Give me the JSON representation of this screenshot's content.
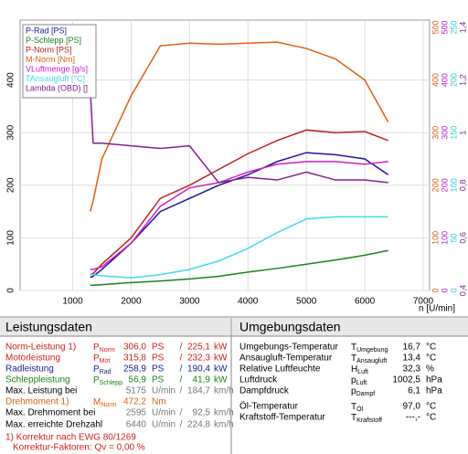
{
  "chart_data": {
    "type": "line",
    "x": [
      1300,
      1350,
      1500,
      2000,
      2500,
      3000,
      3500,
      4000,
      4500,
      5000,
      5500,
      6000,
      6400
    ],
    "xlim": [
      100,
      7000
    ],
    "xticks": [
      1000,
      2000,
      3000,
      4000,
      5000,
      6000,
      7000
    ],
    "x_label": "n [U/min]",
    "ylim": [
      0,
      500
    ],
    "yticks": [
      0,
      100,
      200,
      300,
      400
    ],
    "grid": true,
    "y2lim": [
      0,
      500
    ],
    "y2ticks": [
      0,
      100,
      200,
      300,
      400,
      500
    ],
    "y2color": "#e06010",
    "y3lim": [
      0,
      500
    ],
    "y3ticks": [
      0,
      100,
      200,
      300,
      400,
      500
    ],
    "y3color": "#c020c0",
    "y4lim": [
      0,
      250
    ],
    "y4ticks": [
      0,
      50,
      100,
      150,
      200,
      250
    ],
    "y4color": "#30d0e0",
    "y5lim": [
      0.4,
      1.4
    ],
    "y5ticks": [
      {
        "value": 0.4,
        "label": "0,4"
      },
      {
        "value": 0.6,
        "label": "0,6"
      },
      {
        "value": 0.8,
        "label": "0,8"
      },
      1,
      {
        "value": 1.2,
        "label": "1,2"
      },
      {
        "value": 1.4,
        "label": "1,4"
      }
    ],
    "y5color": "#802090",
    "series": [
      {
        "name": "P-Rad [PS]",
        "color": "#1a1aa0",
        "values": [
          25,
          27,
          40,
          90,
          150,
          175,
          200,
          220,
          245,
          262,
          258,
          250,
          220
        ]
      },
      {
        "name": "P-Schlepp [PS]",
        "color": "#208020",
        "values": [
          10,
          10,
          11,
          15,
          18,
          22,
          27,
          35,
          42,
          50,
          58,
          67,
          76
        ]
      },
      {
        "name": "P-Norm [PS]",
        "color": "#c02020",
        "values": [
          30,
          32,
          50,
          100,
          175,
          200,
          230,
          260,
          285,
          305,
          300,
          302,
          285
        ]
      },
      {
        "name": "M-Norm [Nm]",
        "color": "#e06010",
        "axis": "y2",
        "values": [
          150,
          170,
          250,
          370,
          465,
          470,
          468,
          470,
          472,
          460,
          440,
          400,
          320
        ]
      },
      {
        "name": "VLuftmenge [g/s]",
        "color": "#d020d0",
        "axis": "y3",
        "values": [
          40,
          40,
          45,
          90,
          160,
          195,
          205,
          225,
          240,
          245,
          245,
          240,
          245
        ]
      },
      {
        "name": "TAnsaugluft [°C]",
        "color": "#40e0e8",
        "axis": "y4",
        "values": [
          15,
          15,
          14,
          12,
          15,
          20,
          28,
          40,
          55,
          68,
          70,
          70,
          70
        ]
      },
      {
        "name": "Lambda (OBD) []",
        "color": "#802090",
        "axis": "y5",
        "values": [
          1.17,
          0.96,
          0.96,
          0.95,
          0.94,
          0.95,
          0.81,
          0.83,
          0.82,
          0.85,
          0.82,
          0.82,
          0.81
        ]
      }
    ]
  },
  "power": {
    "title": "Leistungsdaten",
    "rows": [
      {
        "label": "Norm-Leistung 1)",
        "color": "#d02020",
        "symbol": "P",
        "sub": "Norm",
        "value": "306,0",
        "unit": "PS",
        "sep": "/",
        "value2": "225,1",
        "unit2": "kW"
      },
      {
        "label": "Motorleistung",
        "color": "#d02020",
        "symbol": "P",
        "sub": "Mot",
        "value": "315,8",
        "unit": "PS",
        "sep": "/",
        "value2": "232,3",
        "unit2": "kW"
      },
      {
        "label": "Radleistung",
        "color": "#1a1aa0",
        "symbol": "P",
        "sub": "Rad",
        "value": "258,9",
        "unit": "PS",
        "sep": "/",
        "value2": "190,4",
        "unit2": "kW"
      },
      {
        "label": "Schleppleistung",
        "color": "#208020",
        "symbol": "P",
        "sub": "Schlepp",
        "value": "56,9",
        "unit": "PS",
        "sep": "/",
        "value2": "41,9",
        "unit2": "kW"
      },
      {
        "label": "Max. Leistung bei",
        "color": "#000000",
        "value": "5175",
        "unit": "U/min",
        "sep": "/",
        "value2": "184,7",
        "unit2": "km/h"
      },
      {
        "label": "Drehmoment 1)",
        "color": "#e06010",
        "symbol": "M",
        "sub": "Norm",
        "value": "472,2",
        "unit": "Nm"
      },
      {
        "label": "Max. Drehmoment bei",
        "color": "#000000",
        "value": "2595",
        "unit": "U/min",
        "sep": "/",
        "value2": "92,5",
        "unit2": "km/h"
      },
      {
        "label": "Max. erreichte Drehzahl",
        "color": "#000000",
        "value": "6440",
        "unit": "U/min",
        "sep": "/",
        "value2": "224,8",
        "unit2": "km/h"
      }
    ],
    "footnote": "1) Korrektur nach EWG 80/1269",
    "factors": "Korrektur-Faktoren: Qv =  0,00 %"
  },
  "ambient": {
    "title": "Umgebungsdaten",
    "rows": [
      {
        "label": "Umgebungs-Temperatur",
        "symbol": "T",
        "sub": "Umgebung",
        "value": "16,7",
        "unit": "°C"
      },
      {
        "label": "Ansaugluft-Temperatur",
        "symbol": "T",
        "sub": "Ansaugluft",
        "value": "13,4",
        "unit": "°C"
      },
      {
        "label": "Relative Luftfeuchte",
        "symbol": "H",
        "sub": "Luft",
        "value": "32,3",
        "unit": "%"
      },
      {
        "label": "Luftdruck",
        "symbol": "p",
        "sub": "Luft",
        "value": "1002,5",
        "unit": "hPa"
      },
      {
        "label": "Dampfdruck",
        "symbol": "p",
        "sub": "Dampf",
        "value": "6,1",
        "unit": "hPa"
      },
      {
        "label": "Öl-Temperatur",
        "symbol": "T",
        "sub": "Öl",
        "value": "97,0",
        "unit": "°C"
      },
      {
        "label": "Kraftstoff-Temperatur",
        "symbol": "T",
        "sub": "Kraftstoff",
        "value": "---,-",
        "unit": "°C"
      }
    ]
  }
}
